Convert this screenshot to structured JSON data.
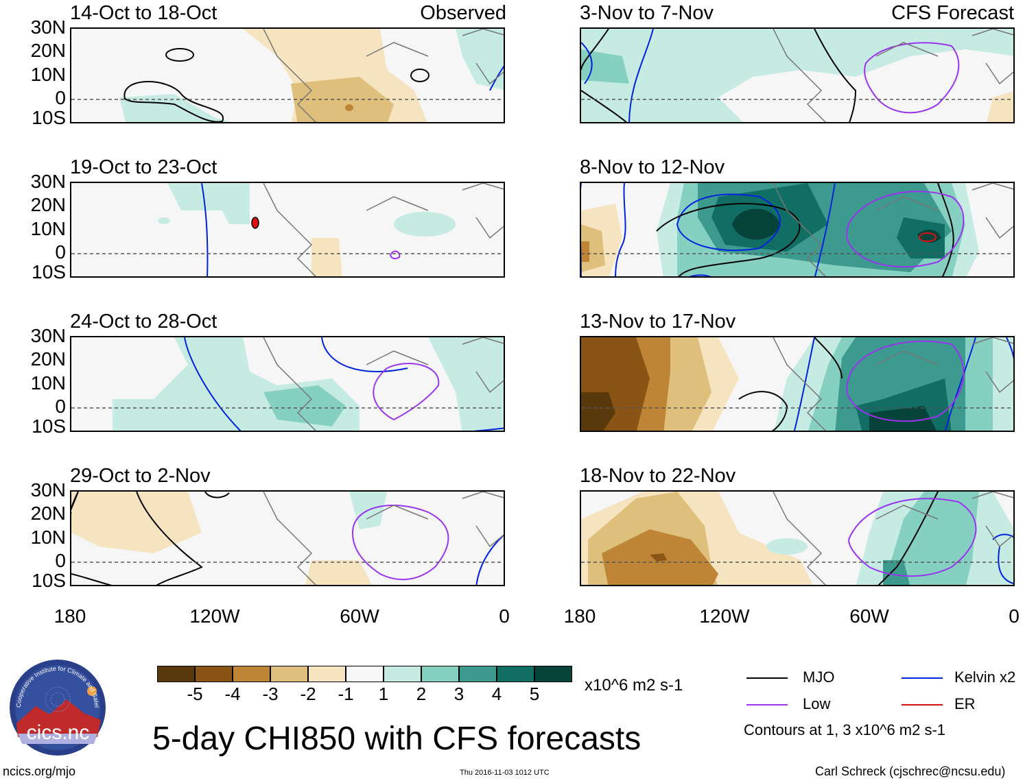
{
  "title": "5-day CHI850 with CFS forecasts",
  "observed_label": "Observed",
  "forecast_label": "CFS Forecast",
  "lat_labels": [
    "30N",
    "20N",
    "10N",
    "0",
    "10S"
  ],
  "lon_labels": [
    "180",
    "120W",
    "60W",
    "0"
  ],
  "panels_left": [
    {
      "title": "14-Oct to 18-Oct"
    },
    {
      "title": "19-Oct to 23-Oct"
    },
    {
      "title": "24-Oct to 28-Oct"
    },
    {
      "title": "29-Oct to 2-Nov"
    }
  ],
  "panels_right": [
    {
      "title": "3-Nov to 7-Nov"
    },
    {
      "title": "8-Nov to 12-Nov"
    },
    {
      "title": "13-Nov to 17-Nov"
    },
    {
      "title": "18-Nov to 22-Nov"
    }
  ],
  "colorbar": {
    "labels": [
      "-5",
      "-4",
      "-3",
      "-2",
      "-1",
      "1",
      "2",
      "3",
      "4",
      "5"
    ],
    "units": "x10^6 m2 s-1",
    "colors": [
      "#5a3a0c",
      "#8a5414",
      "#be8536",
      "#dfbf7c",
      "#f5e4bf",
      "#f6f6f6",
      "#c6ebe2",
      "#86d0c2",
      "#3c9a8e",
      "#106e64",
      "#07423b"
    ]
  },
  "legend": {
    "items": [
      {
        "label": "MJO",
        "color": "#000000"
      },
      {
        "label": "Kelvin x2",
        "color": "#0022dd"
      },
      {
        "label": "Low",
        "color": "#9933ee"
      },
      {
        "label": "ER",
        "color": "#dd1111"
      }
    ],
    "note": "Contours at 1, 3 x10^6 m2 s-1"
  },
  "logo_text": "cics.nc",
  "logo_ring_text": "Cooperative Institute for Climate and Satellites",
  "footer": {
    "url": "ncics.org/mjo",
    "timestamp": "Thu 2016-11-03 1012 UTC",
    "author": "Carl Schreck (cjschrec@ncsu.edu)"
  }
}
